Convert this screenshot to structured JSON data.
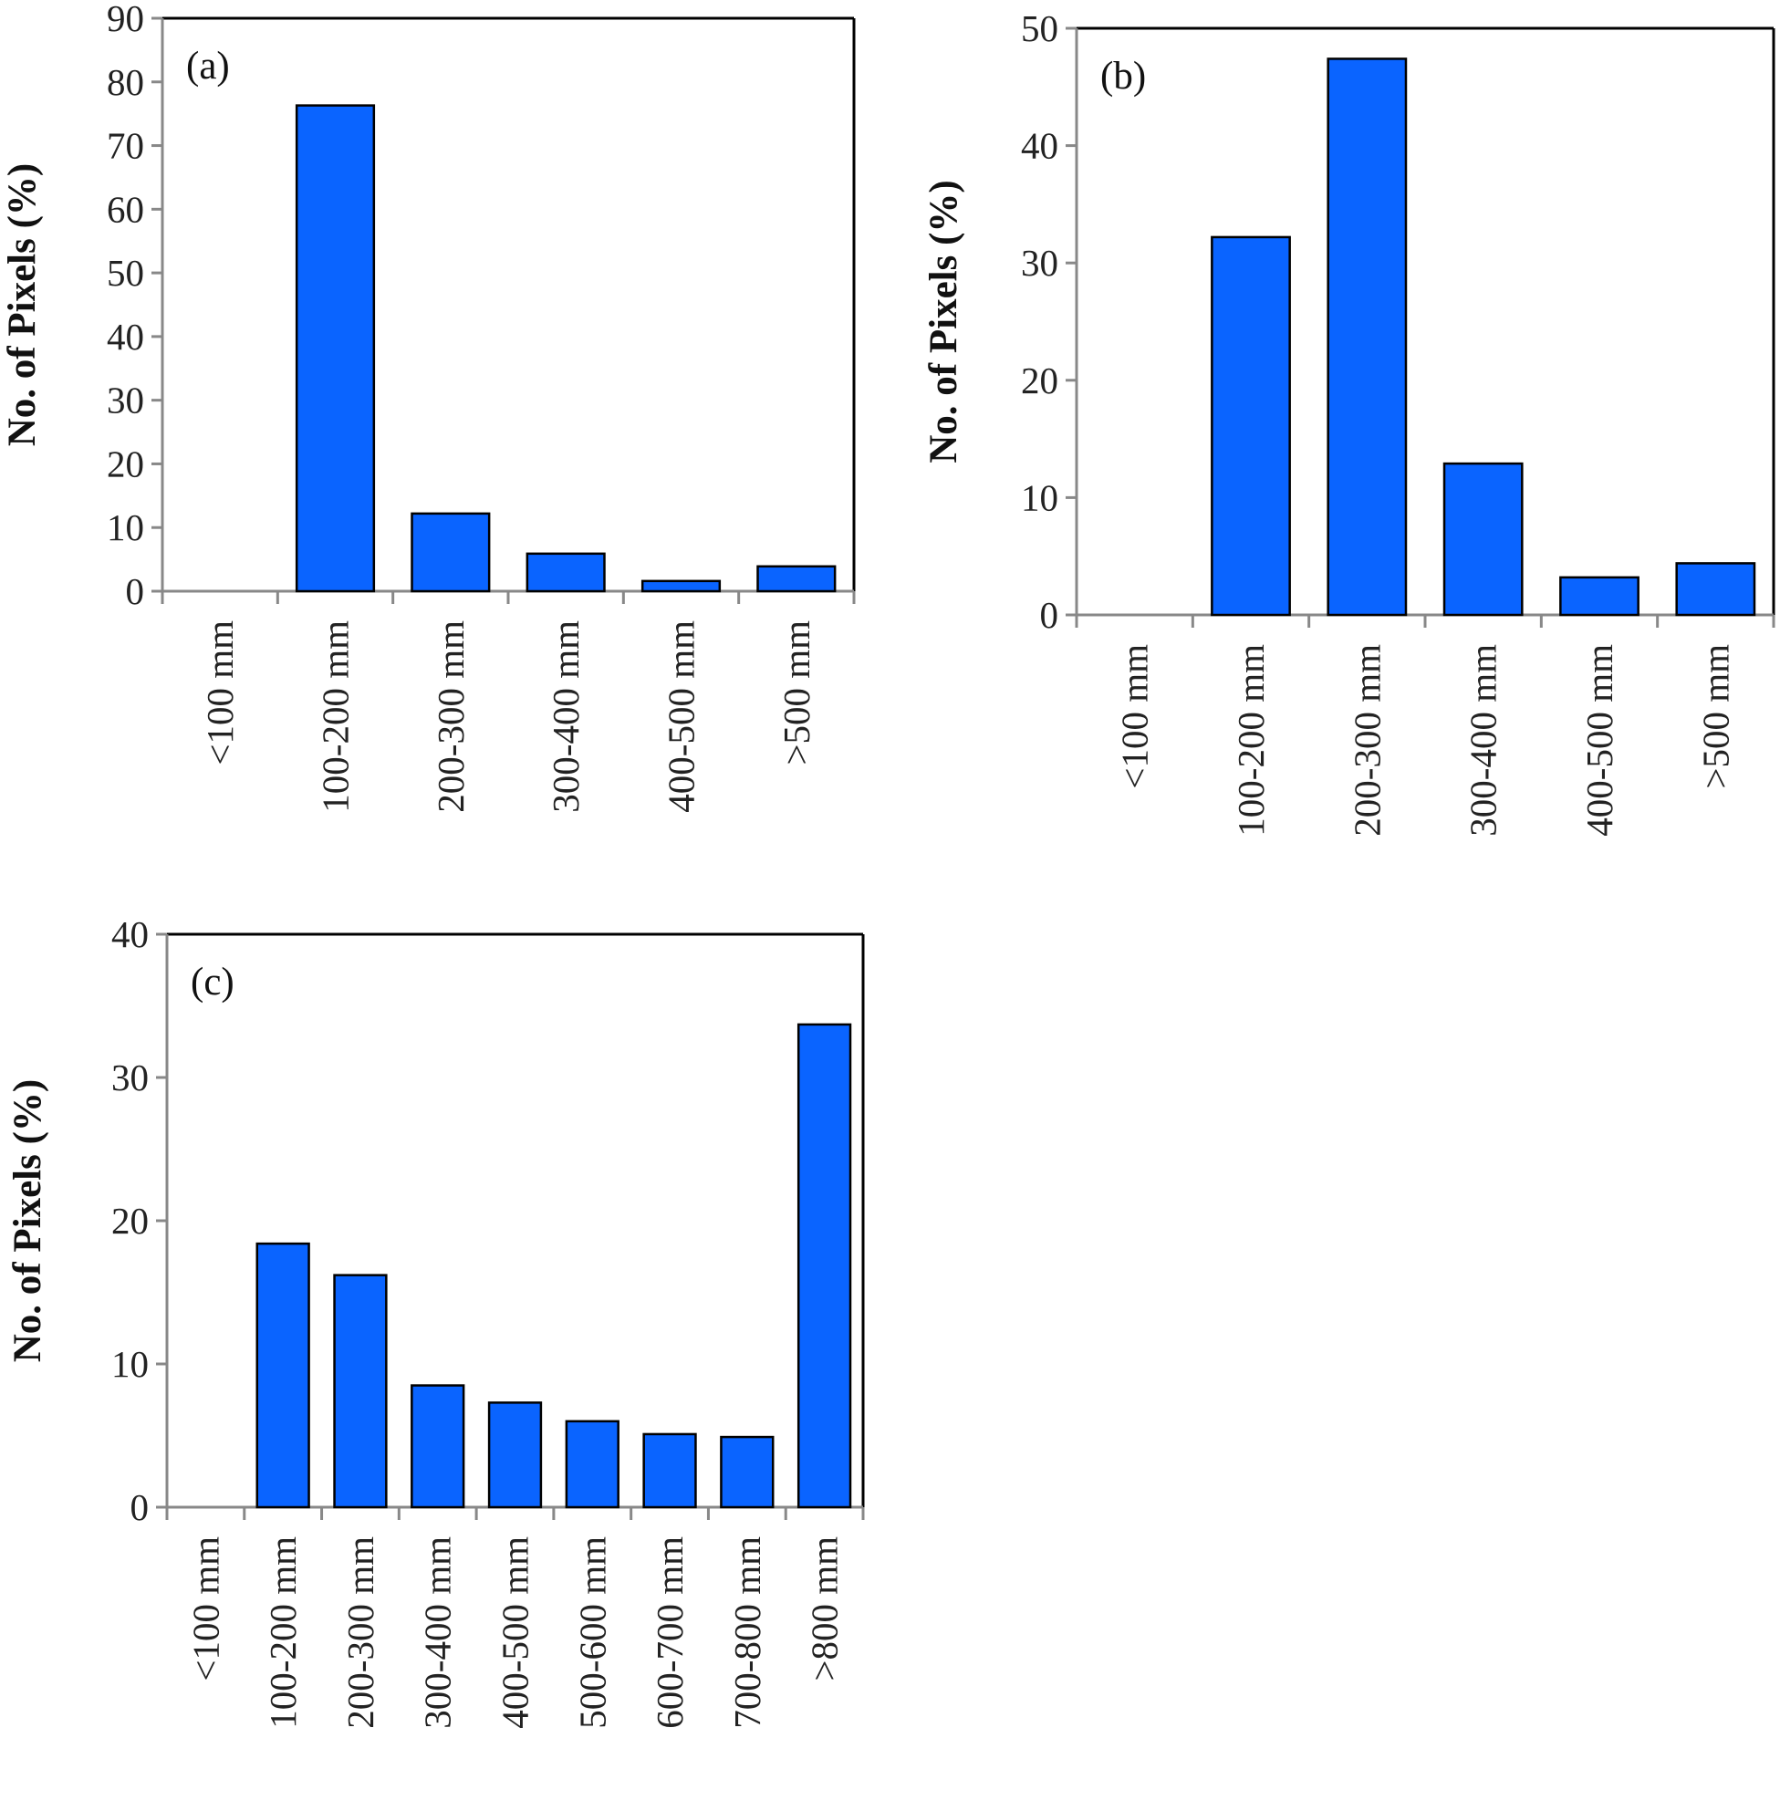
{
  "chart_data": [
    {
      "type": "bar",
      "panel_label": "(a)",
      "ylabel": "No. of Pixels (%)",
      "xlabel": "",
      "ylim": [
        0,
        90
      ],
      "yticks": [
        0,
        10,
        20,
        30,
        40,
        50,
        60,
        70,
        80,
        90
      ],
      "categories": [
        "<100 mm",
        "100-200 mm",
        "200-300 mm",
        "300-400 mm",
        "400-500 mm",
        ">500 mm"
      ],
      "values": [
        0,
        76.3,
        12.2,
        5.9,
        1.6,
        3.9
      ],
      "bar_color": "#0a64ff"
    },
    {
      "type": "bar",
      "panel_label": "(b)",
      "ylabel": "No. of Pixels (%)",
      "xlabel": "",
      "ylim": [
        0,
        50
      ],
      "yticks": [
        0,
        10,
        20,
        30,
        40,
        50
      ],
      "categories": [
        "<100 mm",
        "100-200 mm",
        "200-300 mm",
        "300-400 mm",
        "400-500 mm",
        ">500 mm"
      ],
      "values": [
        0,
        32.2,
        47.4,
        12.9,
        3.2,
        4.4
      ],
      "bar_color": "#0a64ff"
    },
    {
      "type": "bar",
      "panel_label": "(c)",
      "ylabel": "No. of Pixels (%)",
      "xlabel": "",
      "ylim": [
        0,
        40
      ],
      "yticks": [
        0,
        10,
        20,
        30,
        40
      ],
      "categories": [
        "<100 mm",
        "100-200 mm",
        "200-300 mm",
        "300-400 mm",
        "400-500 mm",
        "500-600 mm",
        "600-700 mm",
        "700-800 mm",
        ">800 mm"
      ],
      "values": [
        0,
        18.4,
        16.2,
        8.5,
        7.3,
        6.0,
        5.1,
        4.9,
        33.7
      ],
      "bar_color": "#0a64ff"
    }
  ]
}
